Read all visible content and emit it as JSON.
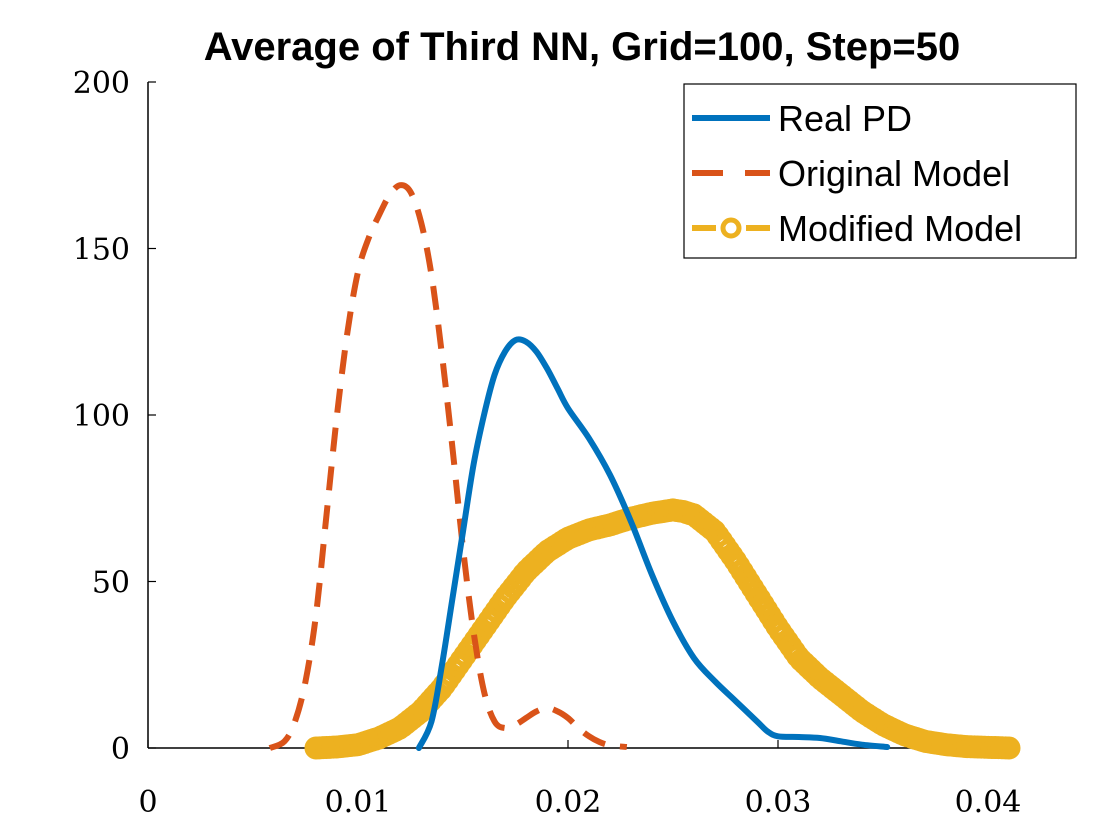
{
  "chart_data": {
    "type": "line",
    "title": "Average of Third NN, Grid=100, Step=50",
    "xlabel": "",
    "ylabel": "",
    "xlim": [
      0,
      0.04
    ],
    "ylim": [
      0,
      200
    ],
    "xticks": [
      "0",
      "0.01",
      "0.02",
      "0.03",
      "0.04"
    ],
    "yticks": [
      "0",
      "50",
      "100",
      "150",
      "200"
    ],
    "grid": false,
    "legend": "top-right",
    "series": [
      {
        "name": "Real PD",
        "color": "#0072BD",
        "style": "solid",
        "points": [
          [
            0.0129,
            0
          ],
          [
            0.0135,
            8
          ],
          [
            0.014,
            25
          ],
          [
            0.0145,
            45
          ],
          [
            0.015,
            65
          ],
          [
            0.0155,
            85
          ],
          [
            0.016,
            100
          ],
          [
            0.0165,
            112
          ],
          [
            0.017,
            119
          ],
          [
            0.0175,
            122.5
          ],
          [
            0.018,
            122
          ],
          [
            0.0185,
            119
          ],
          [
            0.019,
            114
          ],
          [
            0.0195,
            108
          ],
          [
            0.02,
            102
          ],
          [
            0.021,
            93
          ],
          [
            0.022,
            82
          ],
          [
            0.023,
            68
          ],
          [
            0.024,
            52
          ],
          [
            0.025,
            38
          ],
          [
            0.026,
            27
          ],
          [
            0.027,
            20
          ],
          [
            0.028,
            14
          ],
          [
            0.029,
            8
          ],
          [
            0.0295,
            5
          ],
          [
            0.03,
            3.5
          ],
          [
            0.031,
            3.3
          ],
          [
            0.032,
            3
          ],
          [
            0.033,
            2
          ],
          [
            0.034,
            1
          ],
          [
            0.0352,
            0.3
          ]
        ]
      },
      {
        "name": "Original Model",
        "color": "#D95319",
        "style": "dashed",
        "points": [
          [
            0.0058,
            0
          ],
          [
            0.0065,
            2
          ],
          [
            0.007,
            8
          ],
          [
            0.0075,
            20
          ],
          [
            0.008,
            40
          ],
          [
            0.0085,
            70
          ],
          [
            0.009,
            100
          ],
          [
            0.0095,
            125
          ],
          [
            0.01,
            143
          ],
          [
            0.0105,
            153
          ],
          [
            0.011,
            160
          ],
          [
            0.0115,
            166
          ],
          [
            0.012,
            169
          ],
          [
            0.0125,
            167
          ],
          [
            0.013,
            158
          ],
          [
            0.0135,
            142
          ],
          [
            0.014,
            118
          ],
          [
            0.0145,
            90
          ],
          [
            0.015,
            60
          ],
          [
            0.0155,
            35
          ],
          [
            0.016,
            17
          ],
          [
            0.0165,
            8
          ],
          [
            0.017,
            6
          ],
          [
            0.0175,
            7
          ],
          [
            0.018,
            9
          ],
          [
            0.0185,
            11
          ],
          [
            0.019,
            12
          ],
          [
            0.0195,
            11
          ],
          [
            0.02,
            9
          ],
          [
            0.0205,
            6
          ],
          [
            0.021,
            3.5
          ],
          [
            0.0215,
            1.8
          ],
          [
            0.022,
            0.8
          ],
          [
            0.0228,
            0.3
          ]
        ]
      },
      {
        "name": "Modified Model",
        "color": "#EDB120",
        "style": "dash-circle",
        "points": [
          [
            0.008,
            0
          ],
          [
            0.009,
            0.3
          ],
          [
            0.01,
            1
          ],
          [
            0.011,
            3
          ],
          [
            0.012,
            6
          ],
          [
            0.013,
            11
          ],
          [
            0.014,
            18
          ],
          [
            0.015,
            27
          ],
          [
            0.016,
            36
          ],
          [
            0.017,
            45
          ],
          [
            0.018,
            53
          ],
          [
            0.019,
            59
          ],
          [
            0.02,
            63
          ],
          [
            0.021,
            65.5
          ],
          [
            0.022,
            67
          ],
          [
            0.023,
            69
          ],
          [
            0.024,
            70.5
          ],
          [
            0.025,
            71.5
          ],
          [
            0.0255,
            71
          ],
          [
            0.026,
            70
          ],
          [
            0.027,
            65
          ],
          [
            0.028,
            56
          ],
          [
            0.029,
            46
          ],
          [
            0.03,
            36
          ],
          [
            0.031,
            27
          ],
          [
            0.032,
            21
          ],
          [
            0.033,
            16
          ],
          [
            0.034,
            11
          ],
          [
            0.035,
            7
          ],
          [
            0.036,
            4
          ],
          [
            0.037,
            2
          ],
          [
            0.038,
            1
          ],
          [
            0.039,
            0.4
          ],
          [
            0.04,
            0.2
          ],
          [
            0.041,
            0
          ]
        ]
      }
    ]
  }
}
